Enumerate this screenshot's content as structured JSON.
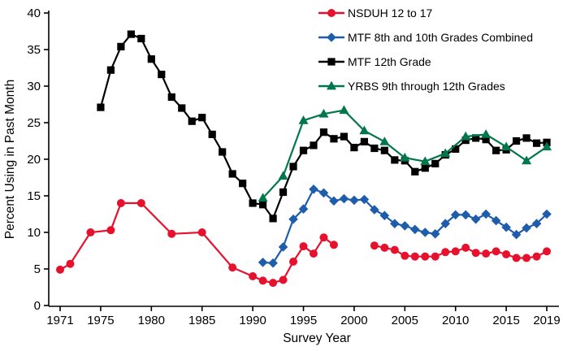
{
  "chart_data": {
    "type": "line",
    "title": "",
    "xlabel": "Survey Year",
    "ylabel": "Percent Using in Past Month",
    "xlim": [
      1971,
      2019
    ],
    "ylim": [
      0,
      40
    ],
    "x_ticks": [
      1971,
      1975,
      1980,
      1985,
      1990,
      1995,
      2000,
      2005,
      2010,
      2015,
      2019
    ],
    "y_ticks": [
      0,
      5,
      10,
      15,
      20,
      25,
      30,
      35,
      40
    ],
    "grid": false,
    "legend_position": "top-right",
    "series": [
      {
        "name": "NSDUH 12 to 17",
        "color": "#e8112d",
        "marker": "circle",
        "note": "line broken between 1998 and 2002",
        "segments": [
          [
            [
              1971,
              4.9
            ],
            [
              1972,
              5.7
            ],
            [
              1974,
              10.0
            ],
            [
              1976,
              10.3
            ],
            [
              1977,
              14.0
            ],
            [
              1979,
              14.0
            ],
            [
              1982,
              9.8
            ],
            [
              1985,
              10.0
            ],
            [
              1988,
              5.2
            ],
            [
              1990,
              4.0
            ],
            [
              1991,
              3.4
            ],
            [
              1992,
              3.1
            ],
            [
              1993,
              3.5
            ],
            [
              1994,
              6.0
            ],
            [
              1995,
              8.1
            ],
            [
              1996,
              7.1
            ],
            [
              1997,
              9.3
            ],
            [
              1998,
              8.3
            ]
          ],
          [
            [
              2002,
              8.2
            ],
            [
              2003,
              7.9
            ],
            [
              2004,
              7.6
            ],
            [
              2005,
              6.8
            ],
            [
              2006,
              6.7
            ],
            [
              2007,
              6.7
            ],
            [
              2008,
              6.7
            ],
            [
              2009,
              7.3
            ],
            [
              2010,
              7.4
            ],
            [
              2011,
              7.9
            ],
            [
              2012,
              7.2
            ],
            [
              2013,
              7.1
            ],
            [
              2014,
              7.4
            ],
            [
              2015,
              7.0
            ],
            [
              2016,
              6.5
            ],
            [
              2017,
              6.5
            ],
            [
              2018,
              6.7
            ],
            [
              2019,
              7.4
            ]
          ]
        ]
      },
      {
        "name": "MTF 8th and 10th Grades Combined",
        "color": "#1e5cac",
        "marker": "diamond",
        "segments": [
          [
            [
              1991,
              5.9
            ],
            [
              1992,
              5.8
            ],
            [
              1993,
              8.0
            ],
            [
              1994,
              11.8
            ],
            [
              1995,
              13.2
            ],
            [
              1996,
              15.9
            ],
            [
              1997,
              15.4
            ],
            [
              1998,
              14.3
            ],
            [
              1999,
              14.6
            ],
            [
              2000,
              14.4
            ],
            [
              2001,
              14.5
            ],
            [
              2002,
              13.1
            ],
            [
              2003,
              12.3
            ],
            [
              2004,
              11.2
            ],
            [
              2005,
              10.9
            ],
            [
              2006,
              10.4
            ],
            [
              2007,
              10.0
            ],
            [
              2008,
              9.8
            ],
            [
              2009,
              11.2
            ],
            [
              2010,
              12.4
            ],
            [
              2011,
              12.4
            ],
            [
              2012,
              11.8
            ],
            [
              2013,
              12.5
            ],
            [
              2014,
              11.6
            ],
            [
              2015,
              10.7
            ],
            [
              2016,
              9.7
            ],
            [
              2017,
              10.6
            ],
            [
              2018,
              11.2
            ],
            [
              2019,
              12.5
            ]
          ]
        ]
      },
      {
        "name": "MTF 12th Grade",
        "color": "#000000",
        "marker": "square",
        "segments": [
          [
            [
              1975,
              27.1
            ],
            [
              1976,
              32.2
            ],
            [
              1977,
              35.4
            ],
            [
              1978,
              37.1
            ],
            [
              1979,
              36.5
            ],
            [
              1980,
              33.7
            ],
            [
              1981,
              31.6
            ],
            [
              1982,
              28.5
            ],
            [
              1983,
              27.0
            ],
            [
              1984,
              25.2
            ],
            [
              1985,
              25.7
            ],
            [
              1986,
              23.4
            ],
            [
              1987,
              21.0
            ],
            [
              1988,
              18.0
            ],
            [
              1989,
              16.7
            ],
            [
              1990,
              14.0
            ],
            [
              1991,
              13.8
            ],
            [
              1992,
              11.9
            ],
            [
              1993,
              15.5
            ],
            [
              1994,
              19.0
            ],
            [
              1995,
              21.2
            ],
            [
              1996,
              21.9
            ],
            [
              1997,
              23.7
            ],
            [
              1998,
              22.8
            ],
            [
              1999,
              23.1
            ],
            [
              2000,
              21.6
            ],
            [
              2001,
              22.4
            ],
            [
              2002,
              21.5
            ],
            [
              2003,
              21.2
            ],
            [
              2004,
              19.9
            ],
            [
              2005,
              19.8
            ],
            [
              2006,
              18.3
            ],
            [
              2007,
              18.8
            ],
            [
              2008,
              19.4
            ],
            [
              2009,
              20.6
            ],
            [
              2010,
              21.4
            ],
            [
              2011,
              22.6
            ],
            [
              2012,
              22.9
            ],
            [
              2013,
              22.7
            ],
            [
              2014,
              21.2
            ],
            [
              2015,
              21.3
            ],
            [
              2016,
              22.5
            ],
            [
              2017,
              22.9
            ],
            [
              2018,
              22.2
            ],
            [
              2019,
              22.3
            ]
          ]
        ]
      },
      {
        "name": "YRBS 9th through 12th Grades",
        "color": "#00784b",
        "marker": "triangle",
        "segments": [
          [
            [
              1991,
              14.7
            ],
            [
              1993,
              17.7
            ],
            [
              1995,
              25.3
            ],
            [
              1997,
              26.2
            ],
            [
              1999,
              26.7
            ],
            [
              2001,
              23.9
            ],
            [
              2003,
              22.4
            ],
            [
              2005,
              20.2
            ],
            [
              2007,
              19.7
            ],
            [
              2009,
              20.8
            ],
            [
              2011,
              23.1
            ],
            [
              2013,
              23.4
            ],
            [
              2015,
              21.7
            ],
            [
              2017,
              19.8
            ],
            [
              2019,
              21.7
            ]
          ]
        ]
      }
    ]
  }
}
